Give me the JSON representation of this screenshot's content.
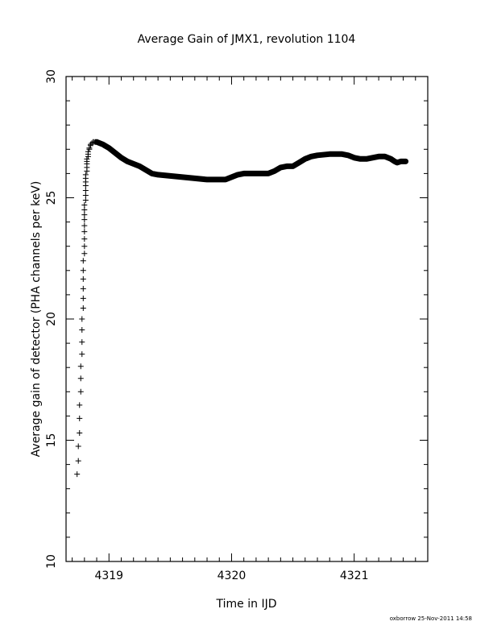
{
  "chart_data": {
    "type": "scatter",
    "title": "Average Gain of JMX1, revolution 1104",
    "xlabel": "Time in IJD",
    "ylabel": "Average gain of detector (PHA channels per keV)",
    "xlim": [
      4318.65,
      4321.6
    ],
    "ylim": [
      10,
      30
    ],
    "x_ticks": [
      4319,
      4320,
      4321
    ],
    "x_tick_labels": [
      "4319",
      "4320",
      "4321"
    ],
    "y_ticks": [
      10,
      15,
      20,
      25,
      30
    ],
    "y_tick_labels": [
      "10",
      "15",
      "20",
      "25",
      "30"
    ],
    "grid": false,
    "marker": "plus",
    "ramp": {
      "x": [
        4318.74,
        4318.75,
        4318.75,
        4318.76,
        4318.76,
        4318.76,
        4318.77,
        4318.77,
        4318.77,
        4318.78,
        4318.78,
        4318.78,
        4318.78,
        4318.79,
        4318.79,
        4318.79,
        4318.79,
        4318.79,
        4318.79,
        4318.8,
        4318.8,
        4318.8,
        4318.8,
        4318.8,
        4318.8,
        4318.8,
        4318.8,
        4318.8,
        4318.81,
        4318.81,
        4318.81,
        4318.81,
        4318.81,
        4318.81,
        4318.81,
        4318.82,
        4318.82,
        4318.82,
        4318.82,
        4318.82,
        4318.83,
        4318.83,
        4318.83,
        4318.84,
        4318.84,
        4318.85,
        4318.85,
        4318.86,
        4318.87,
        4318.88,
        4318.89,
        4318.9
      ],
      "y": [
        13.6,
        14.15,
        14.75,
        15.3,
        15.9,
        16.45,
        17.0,
        17.55,
        18.05,
        18.55,
        19.05,
        19.55,
        20.0,
        20.45,
        20.85,
        21.25,
        21.65,
        22.0,
        22.4,
        22.7,
        23.0,
        23.3,
        23.6,
        23.85,
        24.1,
        24.3,
        24.5,
        24.7,
        24.9,
        25.1,
        25.3,
        25.5,
        25.65,
        25.8,
        25.95,
        26.1,
        26.25,
        26.4,
        26.5,
        26.6,
        26.7,
        26.8,
        26.9,
        27.0,
        27.05,
        27.15,
        27.2,
        27.25,
        27.3,
        27.3,
        27.3,
        27.3
      ]
    },
    "track": {
      "x": [
        4318.9,
        4318.95,
        4319.0,
        4319.05,
        4319.1,
        4319.15,
        4319.2,
        4319.25,
        4319.3,
        4319.35,
        4319.4,
        4319.5,
        4319.6,
        4319.7,
        4319.8,
        4319.9,
        4319.95,
        4320.0,
        4320.05,
        4320.1,
        4320.2,
        4320.3,
        4320.35,
        4320.4,
        4320.45,
        4320.5,
        4320.55,
        4320.6,
        4320.65,
        4320.7,
        4320.8,
        4320.9,
        4320.95,
        4321.0,
        4321.05,
        4321.1,
        4321.15,
        4321.2,
        4321.25,
        4321.3,
        4321.33,
        4321.35,
        4321.38,
        4321.4,
        4321.42
      ],
      "y": [
        27.3,
        27.2,
        27.05,
        26.85,
        26.65,
        26.5,
        26.4,
        26.3,
        26.15,
        26.0,
        25.95,
        25.9,
        25.85,
        25.8,
        25.75,
        25.75,
        25.75,
        25.85,
        25.95,
        26.0,
        26.0,
        26.0,
        26.1,
        26.25,
        26.3,
        26.3,
        26.45,
        26.6,
        26.7,
        26.75,
        26.8,
        26.8,
        26.75,
        26.65,
        26.6,
        26.6,
        26.65,
        26.7,
        26.7,
        26.6,
        26.5,
        26.45,
        26.5,
        26.5,
        26.5
      ]
    }
  },
  "footer": {
    "credit": "oxborrow 25-Nov-2011 14:58"
  }
}
